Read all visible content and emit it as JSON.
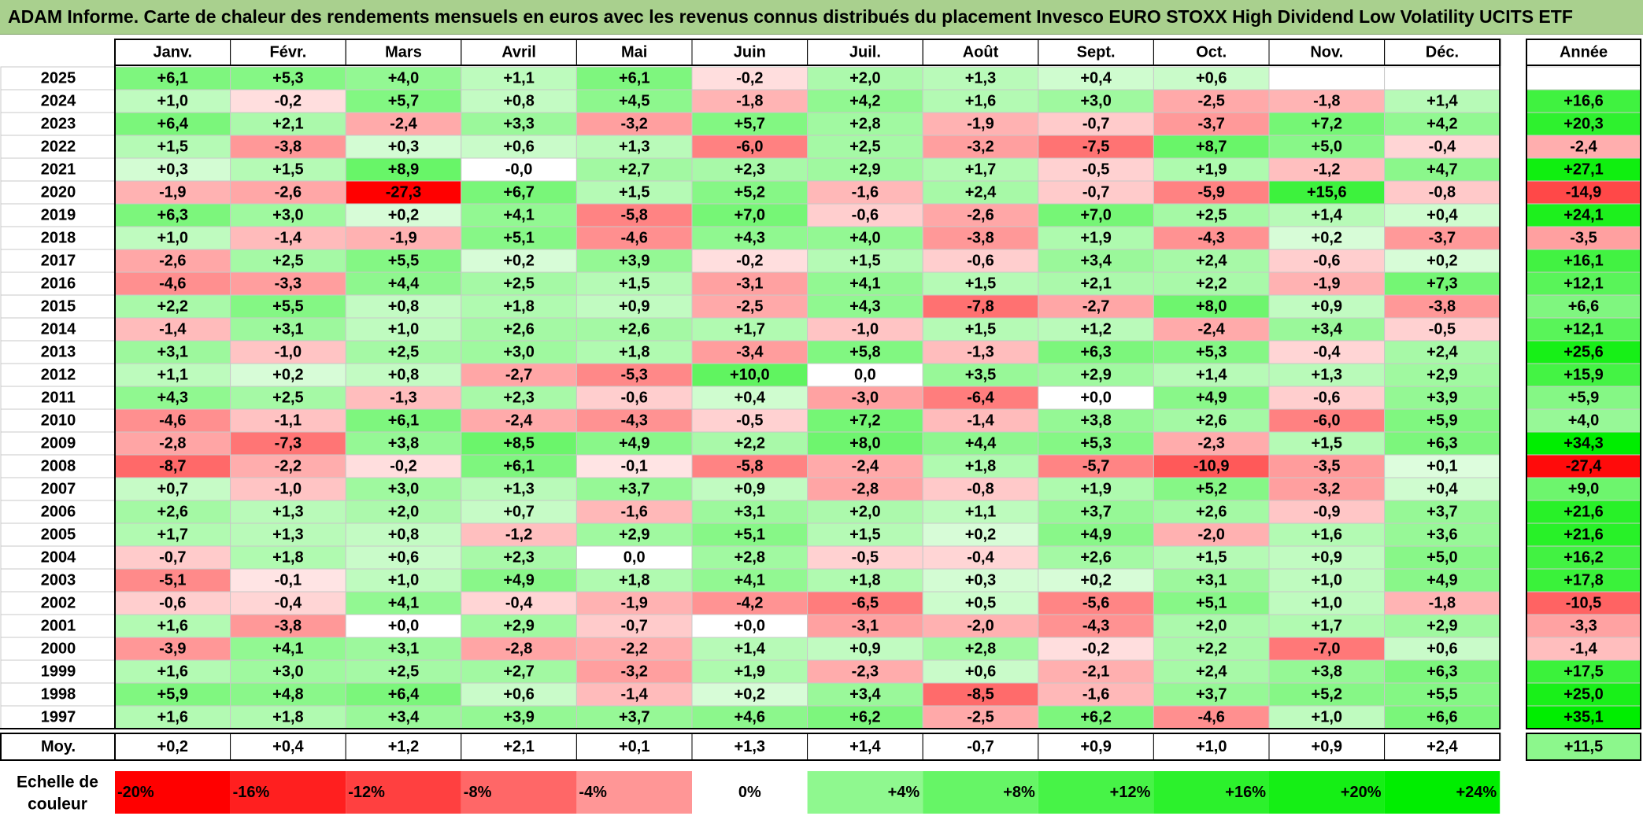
{
  "title": "ADAM Informe. Carte de chaleur des rendements mensuels en euros avec les revenus connus distribués du placement Invesco EURO STOXX High Dividend Low Volatility UCITS ETF",
  "chart_data": {
    "type": "heatmap",
    "title": "ADAM Informe. Carte de chaleur des rendements mensuels en euros avec les revenus connus distribués du placement Invesco EURO STOXX High Dividend Low Volatility UCITS ETF",
    "months": [
      "Janv.",
      "Févr.",
      "Mars",
      "Avril",
      "Mai",
      "Juin",
      "Juil.",
      "Août",
      "Sept.",
      "Oct.",
      "Nov.",
      "Déc."
    ],
    "year_header": "Année",
    "rows": [
      {
        "year": "2025",
        "months": [
          6.1,
          5.3,
          4.0,
          1.1,
          6.1,
          -0.2,
          2.0,
          1.3,
          0.4,
          0.6,
          null,
          null
        ],
        "annual": null
      },
      {
        "year": "2024",
        "months": [
          1.0,
          -0.2,
          5.7,
          0.8,
          4.5,
          -1.8,
          4.2,
          1.6,
          3.0,
          -2.5,
          -1.8,
          1.4
        ],
        "annual": 16.6
      },
      {
        "year": "2023",
        "months": [
          6.4,
          2.1,
          -2.4,
          3.3,
          -3.2,
          5.7,
          2.8,
          -1.9,
          -0.7,
          -3.7,
          7.2,
          4.2
        ],
        "annual": 20.3
      },
      {
        "year": "2022",
        "months": [
          1.5,
          -3.8,
          0.3,
          0.6,
          1.3,
          -6.0,
          2.5,
          -3.2,
          -7.5,
          8.7,
          5.0,
          -0.4
        ],
        "annual": -2.4
      },
      {
        "year": "2021",
        "months": [
          0.3,
          1.5,
          8.9,
          "-0,0",
          2.7,
          2.3,
          2.9,
          1.7,
          -0.5,
          1.9,
          -1.2,
          4.7
        ],
        "annual": 27.1
      },
      {
        "year": "2020",
        "months": [
          -1.9,
          -2.6,
          -27.3,
          6.7,
          1.5,
          5.2,
          -1.6,
          2.4,
          -0.7,
          -5.9,
          15.6,
          -0.8
        ],
        "annual": -14.9
      },
      {
        "year": "2019",
        "months": [
          6.3,
          3.0,
          0.2,
          4.1,
          -5.8,
          7.0,
          -0.6,
          -2.6,
          7.0,
          2.5,
          1.4,
          0.4
        ],
        "annual": 24.1
      },
      {
        "year": "2018",
        "months": [
          1.0,
          -1.4,
          -1.9,
          5.1,
          -4.6,
          4.3,
          4.0,
          -3.8,
          1.9,
          -4.3,
          0.2,
          -3.7
        ],
        "annual": -3.5
      },
      {
        "year": "2017",
        "months": [
          -2.6,
          2.5,
          5.5,
          0.2,
          3.9,
          -0.2,
          1.5,
          -0.6,
          3.4,
          2.4,
          -0.6,
          0.2
        ],
        "annual": 16.1
      },
      {
        "year": "2016",
        "months": [
          -4.6,
          -3.3,
          4.4,
          2.5,
          1.5,
          -3.1,
          4.1,
          1.5,
          2.1,
          2.2,
          -1.9,
          7.3
        ],
        "annual": 12.1
      },
      {
        "year": "2015",
        "months": [
          2.2,
          5.5,
          0.8,
          1.8,
          0.9,
          -2.5,
          4.3,
          -7.8,
          -2.7,
          8.0,
          0.9,
          -3.8
        ],
        "annual": 6.6
      },
      {
        "year": "2014",
        "months": [
          -1.4,
          3.1,
          1.0,
          2.6,
          2.6,
          1.7,
          -1.0,
          1.5,
          1.2,
          -2.4,
          3.4,
          -0.5
        ],
        "annual": 12.1
      },
      {
        "year": "2013",
        "months": [
          3.1,
          -1.0,
          2.5,
          3.0,
          1.8,
          -3.4,
          5.8,
          -1.3,
          6.3,
          5.3,
          -0.4,
          2.4
        ],
        "annual": 25.6
      },
      {
        "year": "2012",
        "months": [
          1.1,
          0.2,
          0.8,
          -2.7,
          -5.3,
          10.0,
          0.0,
          3.5,
          2.9,
          1.4,
          1.3,
          2.9
        ],
        "annual": 15.9
      },
      {
        "year": "2011",
        "months": [
          4.3,
          2.5,
          -1.3,
          2.3,
          -0.6,
          0.4,
          -3.0,
          -6.4,
          "+0,0",
          4.9,
          -0.6,
          3.9
        ],
        "annual": 5.9
      },
      {
        "year": "2010",
        "months": [
          -4.6,
          -1.1,
          6.1,
          -2.4,
          -4.3,
          -0.5,
          7.2,
          -1.4,
          3.8,
          2.6,
          -6.0,
          5.9
        ],
        "annual": 4.0
      },
      {
        "year": "2009",
        "months": [
          -2.8,
          -7.3,
          3.8,
          8.5,
          4.9,
          2.2,
          8.0,
          4.4,
          5.3,
          -2.3,
          1.5,
          6.3
        ],
        "annual": 34.3
      },
      {
        "year": "2008",
        "months": [
          -8.7,
          -2.2,
          -0.2,
          6.1,
          -0.1,
          -5.8,
          -2.4,
          1.8,
          -5.7,
          -10.9,
          -3.5,
          0.1
        ],
        "annual": -27.4
      },
      {
        "year": "2007",
        "months": [
          0.7,
          -1.0,
          3.0,
          1.3,
          3.7,
          0.9,
          -2.8,
          -0.8,
          1.9,
          5.2,
          -3.2,
          0.4
        ],
        "annual": 9.0
      },
      {
        "year": "2006",
        "months": [
          2.6,
          1.3,
          2.0,
          0.7,
          -1.6,
          3.1,
          2.0,
          1.1,
          3.7,
          2.6,
          -0.9,
          3.7
        ],
        "annual": 21.6
      },
      {
        "year": "2005",
        "months": [
          1.7,
          1.3,
          0.8,
          -1.2,
          2.9,
          5.1,
          1.5,
          0.2,
          4.9,
          -2.0,
          1.6,
          3.6
        ],
        "annual": 21.6
      },
      {
        "year": "2004",
        "months": [
          -0.7,
          1.8,
          0.6,
          2.3,
          0.0,
          2.8,
          -0.5,
          -0.4,
          2.6,
          1.5,
          0.9,
          5.0
        ],
        "annual": 16.2
      },
      {
        "year": "2003",
        "months": [
          -5.1,
          -0.1,
          1.0,
          4.9,
          1.8,
          4.1,
          1.8,
          0.3,
          0.2,
          3.1,
          1.0,
          4.9
        ],
        "annual": 17.8
      },
      {
        "year": "2002",
        "months": [
          -0.6,
          -0.4,
          4.1,
          -0.4,
          -1.9,
          -4.2,
          -6.5,
          0.5,
          -5.6,
          5.1,
          1.0,
          -1.8
        ],
        "annual": -10.5
      },
      {
        "year": "2001",
        "months": [
          1.6,
          -3.8,
          "+0,0",
          2.9,
          -0.7,
          "+0,0",
          -3.1,
          -2.0,
          -4.3,
          2.0,
          1.7,
          2.9
        ],
        "annual": -3.3
      },
      {
        "year": "2000",
        "months": [
          -3.9,
          4.1,
          3.1,
          -2.8,
          -2.2,
          1.4,
          0.9,
          2.8,
          -0.2,
          2.2,
          -7.0,
          0.6
        ],
        "annual": -1.4
      },
      {
        "year": "1999",
        "months": [
          1.6,
          3.0,
          2.5,
          2.7,
          -3.2,
          1.9,
          -2.3,
          0.6,
          -2.1,
          2.4,
          3.8,
          6.3
        ],
        "annual": 17.5
      },
      {
        "year": "1998",
        "months": [
          5.9,
          4.8,
          6.4,
          0.6,
          -1.4,
          0.2,
          3.4,
          -8.5,
          -1.6,
          3.7,
          5.2,
          5.5
        ],
        "annual": 25.0
      },
      {
        "year": "1997",
        "months": [
          1.6,
          1.8,
          3.4,
          3.9,
          3.7,
          4.6,
          6.2,
          -2.5,
          6.2,
          -4.6,
          1.0,
          6.6
        ],
        "annual": 35.1
      }
    ],
    "average": {
      "label": "Moy.",
      "months": [
        0.2,
        0.4,
        1.2,
        2.1,
        0.1,
        1.3,
        1.4,
        -0.7,
        0.9,
        1.0,
        0.9,
        2.4
      ],
      "annual": 11.5
    },
    "scale": {
      "label": [
        "Echelle de",
        "couleur"
      ],
      "steps": [
        {
          "label": "-20%",
          "value": -20
        },
        {
          "label": "-16%",
          "value": -16
        },
        {
          "label": "-12%",
          "value": -12
        },
        {
          "label": "-8%",
          "value": -8
        },
        {
          "label": "-4%",
          "value": -4
        },
        {
          "label": "0%",
          "value": 0
        },
        {
          "label": "+4%",
          "value": 4
        },
        {
          "label": "+8%",
          "value": 8
        },
        {
          "label": "+12%",
          "value": 12
        },
        {
          "label": "+16%",
          "value": 16
        },
        {
          "label": "+20%",
          "value": 20
        },
        {
          "label": "+24%",
          "value": 24
        }
      ]
    },
    "colors": {
      "negative_max": "#ff0000",
      "neutral": "#ffffff",
      "positive_max": "#00ee00",
      "title_background": "#a9d08e"
    }
  }
}
